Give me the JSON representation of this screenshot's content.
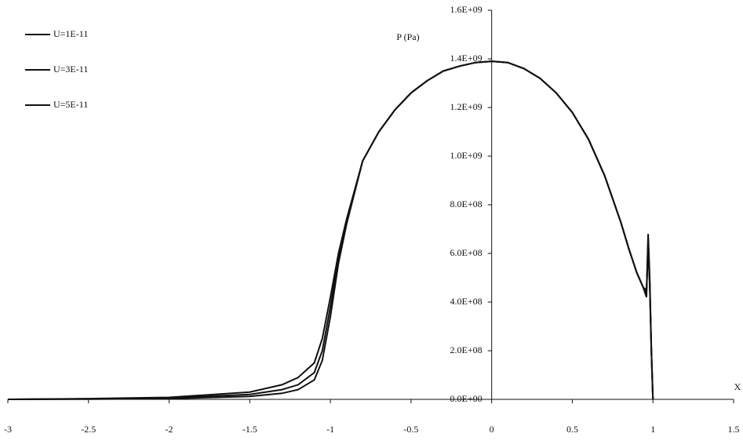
{
  "chart_data": {
    "type": "line",
    "y_label": "P (Pa)",
    "x_label": "X",
    "x": [
      -3,
      -2.5,
      -2,
      -1.5,
      -1.3,
      -1.2,
      -1.1,
      -1.05,
      -1,
      -0.95,
      -0.9,
      -0.8,
      -0.7,
      -0.6,
      -0.5,
      -0.4,
      -0.3,
      -0.2,
      -0.1,
      0,
      0.1,
      0.2,
      0.3,
      0.4,
      0.5,
      0.6,
      0.7,
      0.8,
      0.85,
      0.9,
      0.94,
      0.96,
      0.97,
      0.98,
      0.99,
      1.0
    ],
    "series": [
      {
        "name": "U=1E-11",
        "color": "#111111",
        "values": [
          0,
          1000000,
          3000000,
          12000000,
          25000000,
          40000000,
          80000000,
          160000000,
          340000000,
          560000000,
          720000000,
          980000000,
          1100000000,
          1190000000,
          1260000000,
          1310000000,
          1350000000,
          1370000000,
          1385000000,
          1390000000,
          1385000000,
          1360000000,
          1320000000,
          1260000000,
          1180000000,
          1070000000,
          920000000,
          730000000,
          620000000,
          520000000,
          460000000,
          420000000,
          680000000,
          500000000,
          200000000,
          0
        ]
      },
      {
        "name": "U=3E-11",
        "color": "#111111",
        "values": [
          0,
          2000000,
          5000000,
          20000000,
          40000000,
          60000000,
          110000000,
          200000000,
          380000000,
          580000000,
          730000000,
          980000000,
          1100000000,
          1190000000,
          1260000000,
          1310000000,
          1350000000,
          1370000000,
          1385000000,
          1390000000,
          1385000000,
          1360000000,
          1320000000,
          1260000000,
          1180000000,
          1070000000,
          920000000,
          730000000,
          620000000,
          520000000,
          460000000,
          440000000,
          660000000,
          480000000,
          200000000,
          0
        ]
      },
      {
        "name": "U=5E-11",
        "color": "#111111",
        "values": [
          0,
          3000000,
          8000000,
          30000000,
          60000000,
          90000000,
          150000000,
          250000000,
          420000000,
          600000000,
          740000000,
          980000000,
          1100000000,
          1190000000,
          1260000000,
          1310000000,
          1350000000,
          1370000000,
          1385000000,
          1390000000,
          1385000000,
          1360000000,
          1320000000,
          1260000000,
          1180000000,
          1070000000,
          920000000,
          730000000,
          620000000,
          520000000,
          460000000,
          450000000,
          620000000,
          470000000,
          200000000,
          0
        ]
      }
    ],
    "xlim": [
      -3,
      1.5
    ],
    "xticks": [
      -3,
      -2.5,
      -2,
      -1.5,
      -1,
      -0.5,
      0,
      0.5,
      1,
      1.5
    ],
    "ylim": [
      0,
      1600000000
    ],
    "yticks": [
      {
        "value": 0,
        "label": "0.0E+00"
      },
      {
        "value": 200000000,
        "label": "2.0E+08"
      },
      {
        "value": 400000000,
        "label": "4.0E+08"
      },
      {
        "value": 600000000,
        "label": "6.0E+08"
      },
      {
        "value": 800000000,
        "label": "8.0E+08"
      },
      {
        "value": 1000000000,
        "label": "1.0E+09"
      },
      {
        "value": 1200000000,
        "label": "1.2E+09"
      },
      {
        "value": 1400000000,
        "label": "1.4E+09"
      },
      {
        "value": 1600000000,
        "label": "1.6E+09"
      }
    ],
    "grid": false,
    "legend": "top-left"
  }
}
